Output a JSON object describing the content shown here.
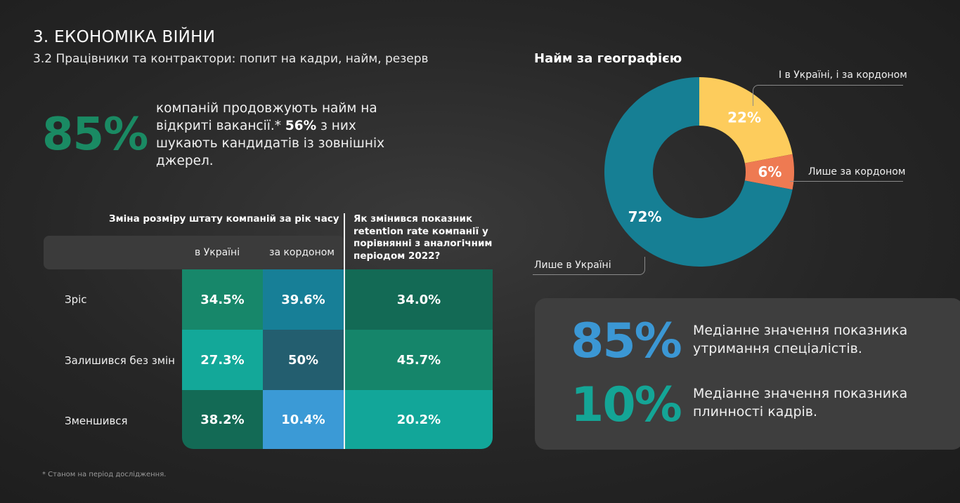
{
  "header": {
    "title": "3. ЕКОНОМІКА ВІЙНИ",
    "subtitle": "3.2 Працівники та контрактори: попит на кадри, найм, резерв"
  },
  "hiring": {
    "big_value": "85%",
    "text_before": "компаній продовжують найм на відкриті вакансії.* ",
    "highlight": "56%",
    "text_after": " з них шукають кандидатів із зовнішніх джерел."
  },
  "footnote": "* Станом на період дослідження.",
  "staff_table": {
    "title": "Зміна розміру штату компаній за рік часу",
    "col_ukraine": "в Україні",
    "col_abroad": "за кордоном",
    "retention_title": "Як змінився показник retention rate компанії у порівнянні з аналогічним періодом 2022?",
    "rows": [
      {
        "label": "Зріс",
        "ukraine": "34.5%",
        "abroad": "39.6%",
        "retention": "34.0%"
      },
      {
        "label": "Залишився без змін",
        "ukraine": "27.3%",
        "abroad": "50%",
        "retention": "45.7%"
      },
      {
        "label": "Зменшився",
        "ukraine": "38.2%",
        "abroad": "10.4%",
        "retention": "20.2%"
      }
    ],
    "colors": {
      "ukraine": [
        "#17876a",
        "#13a899",
        "#136a55"
      ],
      "abroad": [
        "#177f97",
        "#235e6f",
        "#3b9ad6"
      ],
      "retention": [
        "#136a55",
        "#15856a",
        "#12a699"
      ]
    }
  },
  "chart_data": {
    "type": "pie",
    "title": "Найм за географією",
    "slices": [
      {
        "label": "І в Україні, і за кордоном",
        "value": 22,
        "display": "22%",
        "color": "#fdcc5c"
      },
      {
        "label": "Лише за кордоном",
        "value": 6,
        "display": "6%",
        "color": "#ee7a52"
      },
      {
        "label": "Лише в Україні",
        "value": 72,
        "display": "72%",
        "color": "#167f94"
      }
    ]
  },
  "stats": {
    "retention_value": "85%",
    "retention_text": "Медіанне значення показника утримання спеціалістів.",
    "retention_color": "#3b97d4",
    "turnover_value": "10%",
    "turnover_text": "Медіанне значення показника плинності кадрів.",
    "turnover_color": "#14a596"
  }
}
